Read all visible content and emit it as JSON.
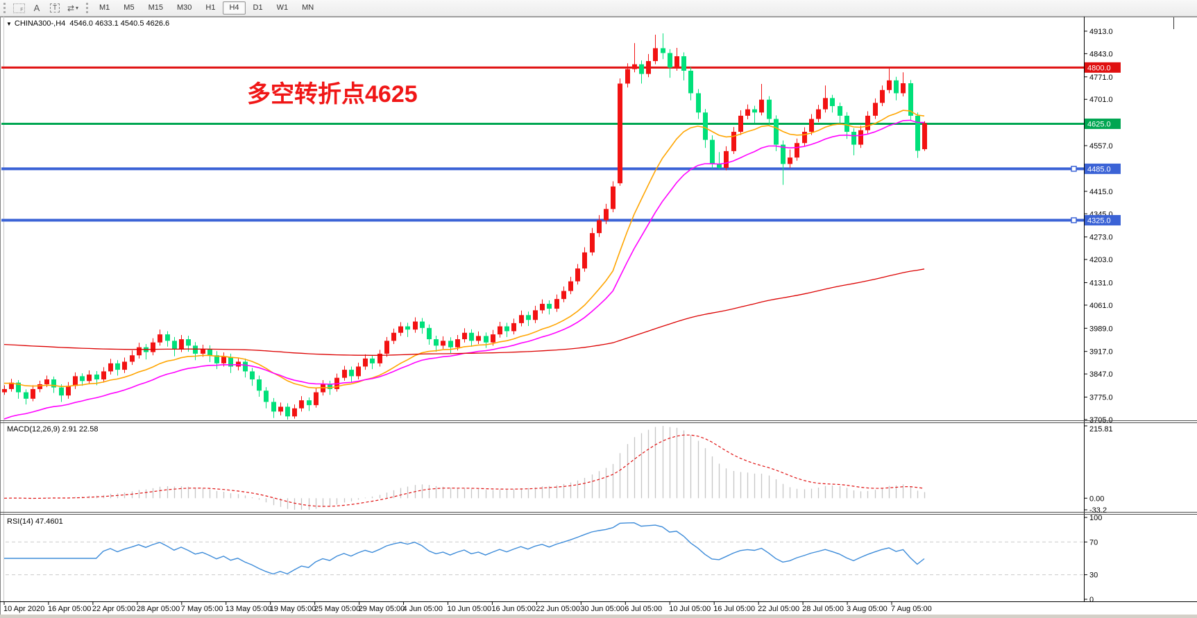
{
  "toolbar": {
    "icon_f": "F",
    "icon_a": "A",
    "icon_t": "T",
    "icon_cycle": "⇄",
    "icon_caret": "▾",
    "timeframes": [
      "M1",
      "M5",
      "M15",
      "M30",
      "H1",
      "H4",
      "D1",
      "W1",
      "MN"
    ],
    "active_timeframe": "H4"
  },
  "chart": {
    "symbol_caret": "▼",
    "symbol_label": "CHINA300-,H4",
    "ohlc_text": "4546.0 4633.1 4540.5 4626.6"
  },
  "chart_data": {
    "type": "candlestick",
    "symbol": "CHINA300-,H4",
    "up_color": "#f21212",
    "down_color": "#00e07a",
    "annotation": {
      "text": "多空转折点4625",
      "color": "#f01616"
    },
    "x_labels": [
      "10 Apr 2020",
      "16 Apr 05:00",
      "22 Apr 05:00",
      "28 Apr 05:00",
      "7 May 05:00",
      "13 May 05:00",
      "19 May 05:00",
      "25 May 05:00",
      "29 May 05:00",
      "4 Jun 05:00",
      "10 Jun 05:00",
      "16 Jun 05:00",
      "22 Jun 05:00",
      "30 Jun 05:00",
      "6 Jul 05:00",
      "10 Jul 05:00",
      "16 Jul 05:00",
      "22 Jul 05:00",
      "28 Jul 05:00",
      "3 Aug 05:00",
      "7 Aug 05:00"
    ],
    "price_axis": {
      "ticks": [
        "4913.0",
        "4843.0",
        "4771.0",
        "4701.0",
        "4557.0",
        "4415.0",
        "4345.0",
        "4273.0",
        "4203.0",
        "4131.0",
        "4061.0",
        "3989.0",
        "3917.0",
        "3847.0",
        "3775.0",
        "3705.0"
      ],
      "badges": [
        {
          "text": "4800.0",
          "price": 4800,
          "color": "#e01010"
        },
        {
          "text": "4625.0",
          "price": 4625,
          "color": "#00a651"
        },
        {
          "text": "4485.0",
          "price": 4485,
          "color": "#3b63d6"
        },
        {
          "text": "4325.0",
          "price": 4325,
          "color": "#3b63d6"
        }
      ]
    },
    "horizontal_lines": [
      {
        "price": 4800,
        "color": "#e01010",
        "width": 3,
        "handle": false
      },
      {
        "price": 4625,
        "color": "#00a651",
        "width": 3,
        "handle": false
      },
      {
        "price": 4485,
        "color": "#3b63d6",
        "width": 4,
        "handle": true
      },
      {
        "price": 4325,
        "color": "#3b63d6",
        "width": 4,
        "handle": true
      }
    ],
    "moving_averages": [
      {
        "period": 18,
        "seed": 3820,
        "color": "#ffa500",
        "width": 1.6
      },
      {
        "period": 28,
        "seed": 3700,
        "color": "#ff00ff",
        "width": 1.6
      },
      {
        "period": 230,
        "seed": 3940,
        "color": "#dc0000",
        "width": 1.3
      }
    ],
    "macd": {
      "label": "MACD(12,26,9) 2.91 22.58",
      "fast": 12,
      "slow": 26,
      "signal": 9,
      "axis_labels": {
        "max": "215.81",
        "zero": "0.00",
        "min": "-33.2"
      },
      "bar_color": "#c6c6c6",
      "signal_color": "#e01010"
    },
    "rsi": {
      "label": "RSI(14) 47.4601",
      "period": 14,
      "levels": [
        "100",
        "70",
        "30",
        "0"
      ],
      "dashed_levels": [
        70,
        30
      ],
      "line_color": "#3c8bd9"
    },
    "candles": [
      [
        3790,
        3812,
        3782,
        3800
      ],
      [
        3800,
        3832,
        3792,
        3820
      ],
      [
        3820,
        3828,
        3770,
        3790
      ],
      [
        3790,
        3799,
        3752,
        3770
      ],
      [
        3770,
        3812,
        3762,
        3800
      ],
      [
        3800,
        3826,
        3790,
        3815
      ],
      [
        3815,
        3842,
        3806,
        3830
      ],
      [
        3830,
        3839,
        3788,
        3805
      ],
      [
        3805,
        3815,
        3760,
        3780
      ],
      [
        3780,
        3822,
        3770,
        3810
      ],
      [
        3810,
        3852,
        3800,
        3840
      ],
      [
        3840,
        3849,
        3810,
        3825
      ],
      [
        3825,
        3858,
        3815,
        3845
      ],
      [
        3845,
        3856,
        3812,
        3830
      ],
      [
        3830,
        3868,
        3820,
        3855
      ],
      [
        3855,
        3894,
        3845,
        3880
      ],
      [
        3880,
        3890,
        3842,
        3860
      ],
      [
        3860,
        3898,
        3850,
        3885
      ],
      [
        3885,
        3920,
        3875,
        3905
      ],
      [
        3905,
        3944,
        3895,
        3930
      ],
      [
        3930,
        3940,
        3892,
        3915
      ],
      [
        3915,
        3958,
        3905,
        3945
      ],
      [
        3945,
        3985,
        3935,
        3970
      ],
      [
        3970,
        3980,
        3932,
        3950
      ],
      [
        3950,
        3962,
        3902,
        3925
      ],
      [
        3925,
        3968,
        3915,
        3955
      ],
      [
        3955,
        3966,
        3916,
        3935
      ],
      [
        3935,
        3946,
        3890,
        3910
      ],
      [
        3910,
        3938,
        3900,
        3925
      ],
      [
        3925,
        3936,
        3884,
        3905
      ],
      [
        3905,
        3918,
        3862,
        3880
      ],
      [
        3880,
        3914,
        3870,
        3900
      ],
      [
        3900,
        3910,
        3850,
        3870
      ],
      [
        3870,
        3898,
        3858,
        3885
      ],
      [
        3885,
        3895,
        3836,
        3855
      ],
      [
        3855,
        3866,
        3810,
        3830
      ],
      [
        3830,
        3842,
        3776,
        3795
      ],
      [
        3795,
        3806,
        3740,
        3760
      ],
      [
        3760,
        3772,
        3710,
        3730
      ],
      [
        3730,
        3758,
        3718,
        3745
      ],
      [
        3745,
        3756,
        3705,
        3715
      ],
      [
        3715,
        3752,
        3708,
        3740
      ],
      [
        3740,
        3778,
        3730,
        3765
      ],
      [
        3765,
        3774,
        3732,
        3750
      ],
      [
        3750,
        3802,
        3742,
        3790
      ],
      [
        3790,
        3828,
        3780,
        3815
      ],
      [
        3815,
        3826,
        3782,
        3800
      ],
      [
        3800,
        3848,
        3792,
        3835
      ],
      [
        3835,
        3872,
        3826,
        3860
      ],
      [
        3860,
        3870,
        3822,
        3840
      ],
      [
        3840,
        3882,
        3830,
        3870
      ],
      [
        3870,
        3908,
        3860,
        3895
      ],
      [
        3895,
        3906,
        3862,
        3880
      ],
      [
        3880,
        3922,
        3870,
        3910
      ],
      [
        3910,
        3962,
        3900,
        3950
      ],
      [
        3950,
        3988,
        3940,
        3975
      ],
      [
        3975,
        4008,
        3965,
        3995
      ],
      [
        3995,
        4006,
        3962,
        3985
      ],
      [
        3985,
        4023,
        3975,
        4010
      ],
      [
        4010,
        4021,
        3972,
        3990
      ],
      [
        3990,
        4001,
        3938,
        3955
      ],
      [
        3955,
        3966,
        3916,
        3935
      ],
      [
        3935,
        3964,
        3925,
        3950
      ],
      [
        3950,
        3961,
        3912,
        3930
      ],
      [
        3930,
        3968,
        3920,
        3955
      ],
      [
        3955,
        3989,
        3945,
        3975
      ],
      [
        3975,
        3986,
        3932,
        3950
      ],
      [
        3950,
        3979,
        3940,
        3965
      ],
      [
        3965,
        3976,
        3928,
        3945
      ],
      [
        3945,
        3984,
        3935,
        3970
      ],
      [
        3970,
        4009,
        3960,
        3995
      ],
      [
        3995,
        4006,
        3962,
        3980
      ],
      [
        3980,
        4019,
        3970,
        4005
      ],
      [
        4005,
        4044,
        3995,
        4030
      ],
      [
        4030,
        4041,
        3996,
        4015
      ],
      [
        4015,
        4059,
        4005,
        4045
      ],
      [
        4045,
        4079,
        4035,
        4065
      ],
      [
        4065,
        4076,
        4032,
        4050
      ],
      [
        4050,
        4094,
        4040,
        4080
      ],
      [
        4080,
        4119,
        4070,
        4105
      ],
      [
        4105,
        4149,
        4095,
        4135
      ],
      [
        4135,
        4189,
        4125,
        4175
      ],
      [
        4175,
        4241,
        4165,
        4225
      ],
      [
        4225,
        4301,
        4215,
        4285
      ],
      [
        4285,
        4341,
        4273,
        4325
      ],
      [
        4325,
        4376,
        4313,
        4360
      ],
      [
        4360,
        4446,
        4350,
        4430
      ],
      [
        4440,
        4766,
        4432,
        4750
      ],
      [
        4750,
        4813,
        4738,
        4795
      ],
      [
        4795,
        4876,
        4785,
        4810
      ],
      [
        4810,
        4822,
        4750,
        4780
      ],
      [
        4780,
        4842,
        4770,
        4820
      ],
      [
        4820,
        4902,
        4810,
        4860
      ],
      [
        4860,
        4906,
        4826,
        4845
      ],
      [
        4845,
        4857,
        4768,
        4800
      ],
      [
        4800,
        4861,
        4790,
        4835
      ],
      [
        4835,
        4847,
        4760,
        4790
      ],
      [
        4790,
        4801,
        4698,
        4720
      ],
      [
        4720,
        4733,
        4640,
        4660
      ],
      [
        4660,
        4671,
        4550,
        4575
      ],
      [
        4575,
        4589,
        4486,
        4500
      ],
      [
        4500,
        4537,
        4484,
        4488
      ],
      [
        4488,
        4555,
        4480,
        4540
      ],
      [
        4540,
        4615,
        4531,
        4600
      ],
      [
        4600,
        4667,
        4590,
        4650
      ],
      [
        4650,
        4685,
        4639,
        4670
      ],
      [
        4670,
        4681,
        4628,
        4660
      ],
      [
        4660,
        4749,
        4651,
        4700
      ],
      [
        4700,
        4711,
        4620,
        4640
      ],
      [
        4640,
        4651,
        4540,
        4560
      ],
      [
        4560,
        4573,
        4435,
        4500
      ],
      [
        4500,
        4545,
        4488,
        4520
      ],
      [
        4520,
        4579,
        4510,
        4565
      ],
      [
        4565,
        4614,
        4555,
        4600
      ],
      [
        4600,
        4655,
        4590,
        4640
      ],
      [
        4640,
        4684,
        4630,
        4670
      ],
      [
        4670,
        4744,
        4660,
        4705
      ],
      [
        4705,
        4715,
        4660,
        4680
      ],
      [
        4680,
        4691,
        4628,
        4650
      ],
      [
        4650,
        4661,
        4578,
        4600
      ],
      [
        4600,
        4611,
        4527,
        4560
      ],
      [
        4560,
        4619,
        4550,
        4605
      ],
      [
        4605,
        4664,
        4595,
        4650
      ],
      [
        4650,
        4704,
        4640,
        4690
      ],
      [
        4690,
        4744,
        4680,
        4730
      ],
      [
        4730,
        4797,
        4720,
        4760
      ],
      [
        4760,
        4771,
        4698,
        4720
      ],
      [
        4720,
        4785,
        4710,
        4751
      ],
      [
        4751,
        4761,
        4636,
        4650
      ],
      [
        4650,
        4660,
        4519,
        4541
      ],
      [
        4546,
        4633.1,
        4540.5,
        4626.6
      ]
    ]
  }
}
